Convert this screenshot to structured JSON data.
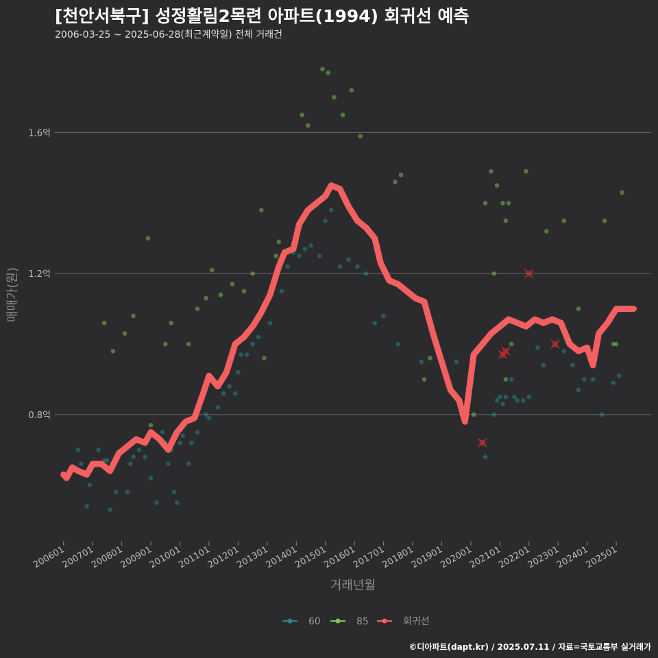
{
  "chart_data": {
    "type": "scatter",
    "title": "[천안서북구] 성정활림2목련 아파트(1994) 회귀선 예측",
    "subtitle": "2006-03-25 ~ 2025-06-28(최근계약일) 전체 거래건",
    "xlabel": "거래년월",
    "ylabel": "매매가(원)",
    "caption": "©디아파트(dapt.kr) / 2025.07.11 / 자료=국토교통부 실거래가",
    "x_ticks": [
      "200601",
      "200701",
      "200801",
      "200901",
      "201001",
      "201101",
      "201201",
      "201301",
      "201401",
      "201501",
      "201601",
      "201701",
      "201801",
      "201901",
      "202001",
      "202101",
      "202201",
      "202301",
      "202401",
      "202501"
    ],
    "y_ticks": [
      {
        "value": 0.8,
        "label": "0.8억"
      },
      {
        "value": 1.2,
        "label": "1.2억"
      },
      {
        "value": 1.6,
        "label": "1.6억"
      }
    ],
    "xlim": [
      2005.7,
      2026.2
    ],
    "ylim": [
      0.44,
      1.84
    ],
    "grid": "horizontal",
    "legend_position": "bottom",
    "colors": {
      "s60": "#2a8a8a",
      "s85": "#7ac85a",
      "regression": "#f46060",
      "outlier": "#c03030"
    },
    "series": [
      {
        "name": "60",
        "points": [
          [
            2006.5,
            0.7
          ],
          [
            2006.6,
            0.66
          ],
          [
            2006.8,
            0.54
          ],
          [
            2006.9,
            0.6
          ],
          [
            2007.2,
            0.7
          ],
          [
            2007.4,
            0.67
          ],
          [
            2007.5,
            0.67
          ],
          [
            2007.6,
            0.53
          ],
          [
            2007.8,
            0.58
          ],
          [
            2008.2,
            0.58
          ],
          [
            2008.3,
            0.66
          ],
          [
            2008.4,
            0.68
          ],
          [
            2008.6,
            0.7
          ],
          [
            2008.8,
            0.68
          ],
          [
            2009.0,
            0.62
          ],
          [
            2009.2,
            0.55
          ],
          [
            2009.4,
            0.75
          ],
          [
            2009.5,
            0.72
          ],
          [
            2009.6,
            0.66
          ],
          [
            2009.7,
            0.7
          ],
          [
            2009.8,
            0.58
          ],
          [
            2009.9,
            0.55
          ],
          [
            2010.0,
            0.72
          ],
          [
            2010.1,
            0.74
          ],
          [
            2010.3,
            0.66
          ],
          [
            2010.4,
            0.72
          ],
          [
            2010.6,
            0.75
          ],
          [
            2010.9,
            0.8
          ],
          [
            2011.0,
            0.79
          ],
          [
            2011.3,
            0.82
          ],
          [
            2011.5,
            0.86
          ],
          [
            2011.7,
            0.88
          ],
          [
            2011.9,
            0.86
          ],
          [
            2012.0,
            0.92
          ],
          [
            2012.1,
            0.97
          ],
          [
            2012.3,
            0.97
          ],
          [
            2012.5,
            1.0
          ],
          [
            2012.7,
            1.02
          ],
          [
            2013.1,
            1.06
          ],
          [
            2013.5,
            1.15
          ],
          [
            2013.7,
            1.22
          ],
          [
            2013.9,
            1.26
          ],
          [
            2014.1,
            1.25
          ],
          [
            2014.3,
            1.27
          ],
          [
            2014.5,
            1.28
          ],
          [
            2014.8,
            1.25
          ],
          [
            2015.0,
            1.35
          ],
          [
            2015.2,
            1.38
          ],
          [
            2015.5,
            1.22
          ],
          [
            2015.8,
            1.24
          ],
          [
            2016.1,
            1.22
          ],
          [
            2016.4,
            1.2
          ],
          [
            2016.7,
            1.06
          ],
          [
            2017.0,
            1.08
          ],
          [
            2017.5,
            1.0
          ],
          [
            2018.3,
            0.95
          ],
          [
            2019.5,
            0.95
          ],
          [
            2019.7,
            0.8
          ],
          [
            2020.5,
            0.68
          ],
          [
            2020.8,
            0.8
          ],
          [
            2020.9,
            0.84
          ],
          [
            2021.0,
            0.85
          ],
          [
            2021.1,
            0.83
          ],
          [
            2021.2,
            0.85
          ],
          [
            2021.4,
            0.9
          ],
          [
            2021.5,
            0.85
          ],
          [
            2021.6,
            0.84
          ],
          [
            2021.8,
            0.84
          ],
          [
            2022.0,
            0.85
          ],
          [
            2022.3,
            0.99
          ],
          [
            2022.5,
            0.94
          ],
          [
            2023.2,
            0.98
          ],
          [
            2023.5,
            0.94
          ],
          [
            2023.7,
            0.87
          ],
          [
            2023.9,
            0.9
          ],
          [
            2024.2,
            0.9
          ],
          [
            2024.5,
            0.8
          ],
          [
            2024.9,
            0.89
          ],
          [
            2025.1,
            0.91
          ]
        ]
      },
      {
        "name": "85",
        "points": [
          [
            2007.4,
            1.06
          ],
          [
            2007.7,
            0.98
          ],
          [
            2008.1,
            1.03
          ],
          [
            2008.4,
            1.08
          ],
          [
            2008.9,
            1.3
          ],
          [
            2009.0,
            0.77
          ],
          [
            2009.5,
            1.0
          ],
          [
            2009.7,
            1.06
          ],
          [
            2010.3,
            1.0
          ],
          [
            2010.6,
            1.1
          ],
          [
            2010.9,
            1.13
          ],
          [
            2011.1,
            1.21
          ],
          [
            2011.4,
            1.14
          ],
          [
            2011.8,
            1.17
          ],
          [
            2012.2,
            1.15
          ],
          [
            2012.5,
            1.2
          ],
          [
            2012.8,
            1.38
          ],
          [
            2012.9,
            0.96
          ],
          [
            2013.3,
            1.25
          ],
          [
            2013.4,
            1.29
          ],
          [
            2014.2,
            1.65
          ],
          [
            2014.4,
            1.62
          ],
          [
            2014.9,
            1.78
          ],
          [
            2015.1,
            1.77
          ],
          [
            2015.3,
            1.7
          ],
          [
            2015.6,
            1.65
          ],
          [
            2015.9,
            1.72
          ],
          [
            2016.2,
            1.59
          ],
          [
            2016.8,
            1.25
          ],
          [
            2017.4,
            1.46
          ],
          [
            2017.6,
            1.48
          ],
          [
            2018.4,
            0.9
          ],
          [
            2018.6,
            0.96
          ],
          [
            2020.1,
            0.8
          ],
          [
            2020.5,
            1.4
          ],
          [
            2020.7,
            1.49
          ],
          [
            2020.9,
            1.45
          ],
          [
            2021.1,
            1.4
          ],
          [
            2021.2,
            1.35
          ],
          [
            2021.3,
            1.4
          ],
          [
            2020.8,
            1.2
          ],
          [
            2021.2,
            0.9
          ],
          [
            2021.4,
            1.0
          ],
          [
            2021.9,
            1.49
          ],
          [
            2022.6,
            1.32
          ],
          [
            2023.2,
            1.35
          ],
          [
            2023.7,
            1.1
          ],
          [
            2024.6,
            1.35
          ],
          [
            2024.9,
            1.0
          ],
          [
            2025.0,
            1.0
          ],
          [
            2025.2,
            1.43
          ]
        ]
      },
      {
        "name": "회귀선",
        "points": [
          [
            2006.0,
            0.63
          ],
          [
            2006.1,
            0.62
          ],
          [
            2006.3,
            0.65
          ],
          [
            2006.5,
            0.64
          ],
          [
            2006.8,
            0.63
          ],
          [
            2007.0,
            0.66
          ],
          [
            2007.3,
            0.66
          ],
          [
            2007.6,
            0.64
          ],
          [
            2007.9,
            0.69
          ],
          [
            2008.2,
            0.71
          ],
          [
            2008.5,
            0.73
          ],
          [
            2008.8,
            0.72
          ],
          [
            2009.0,
            0.75
          ],
          [
            2009.3,
            0.73
          ],
          [
            2009.6,
            0.7
          ],
          [
            2009.9,
            0.75
          ],
          [
            2010.2,
            0.78
          ],
          [
            2010.5,
            0.79
          ],
          [
            2010.8,
            0.86
          ],
          [
            2011.0,
            0.91
          ],
          [
            2011.3,
            0.88
          ],
          [
            2011.6,
            0.92
          ],
          [
            2011.9,
            1.0
          ],
          [
            2012.2,
            1.02
          ],
          [
            2012.5,
            1.05
          ],
          [
            2012.8,
            1.09
          ],
          [
            2013.1,
            1.14
          ],
          [
            2013.4,
            1.22
          ],
          [
            2013.6,
            1.26
          ],
          [
            2013.9,
            1.27
          ],
          [
            2014.1,
            1.34
          ],
          [
            2014.4,
            1.38
          ],
          [
            2014.7,
            1.4
          ],
          [
            2015.0,
            1.42
          ],
          [
            2015.2,
            1.45
          ],
          [
            2015.5,
            1.44
          ],
          [
            2015.8,
            1.39
          ],
          [
            2016.1,
            1.35
          ],
          [
            2016.4,
            1.33
          ],
          [
            2016.7,
            1.3
          ],
          [
            2016.9,
            1.23
          ],
          [
            2017.2,
            1.18
          ],
          [
            2017.5,
            1.17
          ],
          [
            2017.8,
            1.15
          ],
          [
            2018.1,
            1.13
          ],
          [
            2018.4,
            1.12
          ],
          [
            2018.7,
            1.03
          ],
          [
            2019.0,
            0.95
          ],
          [
            2019.3,
            0.87
          ],
          [
            2019.6,
            0.84
          ],
          [
            2019.8,
            0.78
          ],
          [
            2020.1,
            0.97
          ],
          [
            2020.4,
            1.0
          ],
          [
            2020.7,
            1.03
          ],
          [
            2021.0,
            1.05
          ],
          [
            2021.3,
            1.07
          ],
          [
            2021.6,
            1.06
          ],
          [
            2021.9,
            1.05
          ],
          [
            2022.2,
            1.07
          ],
          [
            2022.5,
            1.06
          ],
          [
            2022.8,
            1.07
          ],
          [
            2023.1,
            1.06
          ],
          [
            2023.4,
            1.0
          ],
          [
            2023.7,
            0.98
          ],
          [
            2024.0,
            0.99
          ],
          [
            2024.2,
            0.94
          ],
          [
            2024.4,
            1.03
          ],
          [
            2024.7,
            1.06
          ],
          [
            2025.0,
            1.1
          ],
          [
            2025.3,
            1.1
          ],
          [
            2025.6,
            1.1
          ]
        ]
      }
    ],
    "outliers": [
      [
        2020.4,
        0.72
      ],
      [
        2021.1,
        0.97
      ],
      [
        2021.2,
        0.98
      ],
      [
        2022.0,
        1.2
      ],
      [
        2022.9,
        1.0
      ]
    ]
  }
}
